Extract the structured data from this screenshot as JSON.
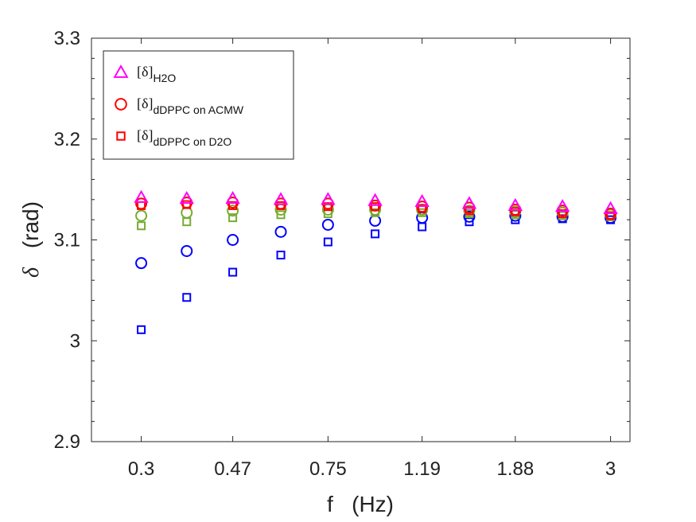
{
  "chart_data": {
    "type": "scatter",
    "title": "",
    "xlabel": "f   (Hz)",
    "ylabel_symbol": "δ",
    "ylabel_unit": "(rad)",
    "x_scale": "log",
    "xlim": [
      0.235,
      3.3
    ],
    "ylim": [
      2.9,
      3.3
    ],
    "x_ticks": [
      0.3,
      0.47,
      0.75,
      1.19,
      1.88,
      3
    ],
    "x_tick_labels": [
      "0.3",
      "0.47",
      "0.75",
      "1.19",
      "1.88",
      "3"
    ],
    "y_ticks": [
      2.9,
      3.0,
      3.1,
      3.2,
      3.3
    ],
    "y_tick_labels": [
      "2.9",
      "3",
      "3.1",
      "3.2",
      "3.3"
    ],
    "x": [
      0.3,
      0.375,
      0.47,
      0.595,
      0.75,
      0.945,
      1.19,
      1.5,
      1.88,
      2.37,
      3.0
    ],
    "grid": false,
    "legend_position": "top-left",
    "legend": [
      {
        "label": "[δ]",
        "subscript": "H2O",
        "marker": "triangle",
        "color": "#ff00ff"
      },
      {
        "label": "[δ]",
        "subscript": "dDPPC on ACMW",
        "marker": "circle",
        "color": "#ff0000"
      },
      {
        "label": "[δ]",
        "subscript": "dDPPC on D2O",
        "marker": "square",
        "color": "#ff0000"
      }
    ],
    "series": [
      {
        "name": "H2O",
        "marker": "triangle",
        "color": "#ff00ff",
        "values": [
          3.142,
          3.141,
          3.141,
          3.14,
          3.14,
          3.139,
          3.138,
          3.136,
          3.134,
          3.133,
          3.131
        ]
      },
      {
        "name": "dDPPC on ACMW (red)",
        "marker": "circle",
        "color": "#ff0000",
        "values": [
          3.136,
          3.137,
          3.137,
          3.136,
          3.136,
          3.134,
          3.133,
          3.132,
          3.13,
          3.129,
          3.126
        ]
      },
      {
        "name": "dDPPC on D2O (red)",
        "marker": "square",
        "color": "#ff0000",
        "values": [
          3.134,
          3.135,
          3.134,
          3.134,
          3.133,
          3.133,
          3.131,
          3.129,
          3.128,
          3.126,
          3.124
        ]
      },
      {
        "name": "green circles",
        "marker": "circle",
        "color": "#77ac30",
        "values": [
          3.124,
          3.127,
          3.129,
          3.13,
          3.13,
          3.13,
          3.13,
          3.129,
          3.128,
          3.127,
          3.125
        ]
      },
      {
        "name": "green squares",
        "marker": "square",
        "color": "#77ac30",
        "values": [
          3.114,
          3.118,
          3.122,
          3.125,
          3.126,
          3.127,
          3.127,
          3.126,
          3.125,
          3.124,
          3.123
        ]
      },
      {
        "name": "blue circles",
        "marker": "circle",
        "color": "#0000ff",
        "values": [
          3.077,
          3.089,
          3.1,
          3.108,
          3.115,
          3.119,
          3.122,
          3.123,
          3.124,
          3.123,
          3.122
        ]
      },
      {
        "name": "blue squares",
        "marker": "square",
        "color": "#0000ff",
        "values": [
          3.011,
          3.043,
          3.068,
          3.085,
          3.098,
          3.106,
          3.113,
          3.118,
          3.12,
          3.121,
          3.12
        ]
      }
    ]
  }
}
